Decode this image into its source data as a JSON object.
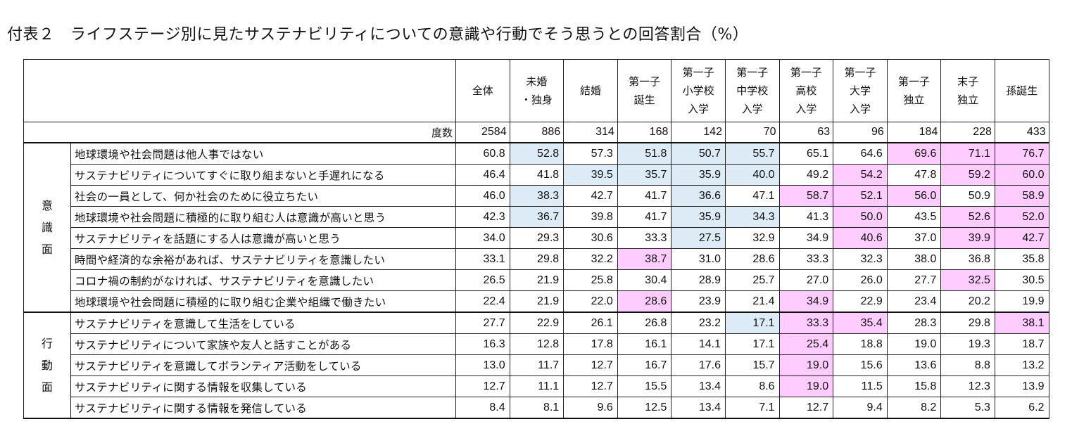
{
  "title": "付表２　ライフステージ別に見たサステナビリティについての意識や行動でそう思うとの回答割合（%）",
  "columns": [
    {
      "lines": [
        "全体"
      ]
    },
    {
      "lines": [
        "未婚",
        "・独身"
      ]
    },
    {
      "lines": [
        "結婚"
      ]
    },
    {
      "lines": [
        "第一子",
        "誕生"
      ]
    },
    {
      "lines": [
        "第一子",
        "小学校",
        "入学"
      ]
    },
    {
      "lines": [
        "第一子",
        "中学校",
        "入学"
      ]
    },
    {
      "lines": [
        "第一子",
        "高校",
        "入学"
      ]
    },
    {
      "lines": [
        "第一子",
        "大学",
        "入学"
      ]
    },
    {
      "lines": [
        "第一子",
        "独立"
      ]
    },
    {
      "lines": [
        "末子",
        "独立"
      ]
    },
    {
      "lines": [
        "孫誕生"
      ]
    }
  ],
  "n_row": {
    "label": "度数",
    "values": [
      "2584",
      "886",
      "314",
      "168",
      "142",
      "70",
      "63",
      "96",
      "184",
      "228",
      "433"
    ]
  },
  "sections": [
    {
      "label": "意識面",
      "rows": [
        {
          "item": "地球環境や社会問題は他人事ではない",
          "values": [
            "60.8",
            "52.8",
            "57.3",
            "51.8",
            "50.7",
            "55.7",
            "65.1",
            "64.6",
            "69.6",
            "71.1",
            "76.7"
          ],
          "hl": [
            "",
            "b",
            "",
            "b",
            "b",
            "b",
            "",
            "",
            "p",
            "p",
            "p"
          ]
        },
        {
          "item": "サステナビリティについてすぐに取り組まないと手遅れになる",
          "values": [
            "46.4",
            "41.8",
            "39.5",
            "35.7",
            "35.9",
            "40.0",
            "49.2",
            "54.2",
            "47.8",
            "59.2",
            "60.0"
          ],
          "hl": [
            "",
            "",
            "b",
            "b",
            "b",
            "b",
            "",
            "p",
            "",
            "p",
            "p"
          ]
        },
        {
          "item": "社会の一員として、何か社会のために役立ちたい",
          "values": [
            "46.0",
            "38.3",
            "42.7",
            "41.7",
            "36.6",
            "47.1",
            "58.7",
            "52.1",
            "56.0",
            "50.9",
            "58.9"
          ],
          "hl": [
            "",
            "b",
            "",
            "",
            "b",
            "",
            "p",
            "p",
            "p",
            "",
            "p"
          ]
        },
        {
          "item": "地球環境や社会問題に積極的に取り組む人は意識が高いと思う",
          "values": [
            "42.3",
            "36.7",
            "39.8",
            "41.7",
            "35.9",
            "34.3",
            "41.3",
            "50.0",
            "43.5",
            "52.6",
            "52.0"
          ],
          "hl": [
            "",
            "b",
            "",
            "",
            "b",
            "b",
            "",
            "p",
            "",
            "p",
            "p"
          ]
        },
        {
          "item": "サステナビリティを話題にする人は意識が高いと思う",
          "values": [
            "34.0",
            "29.3",
            "30.6",
            "33.3",
            "27.5",
            "32.9",
            "34.9",
            "40.6",
            "37.0",
            "39.9",
            "42.7"
          ],
          "hl": [
            "",
            "",
            "",
            "",
            "b",
            "",
            "",
            "p",
            "",
            "p",
            "p"
          ]
        },
        {
          "item": "時間や経済的な余裕があれば、サステナビリティを意識したい",
          "values": [
            "33.1",
            "29.8",
            "32.2",
            "38.7",
            "31.0",
            "28.6",
            "33.3",
            "32.3",
            "38.0",
            "36.8",
            "35.8"
          ],
          "hl": [
            "",
            "",
            "",
            "p",
            "",
            "",
            "",
            "",
            "",
            "",
            ""
          ]
        },
        {
          "item": "コロナ禍の制約がなければ、サステナビリティを意識したい",
          "values": [
            "26.5",
            "21.9",
            "25.8",
            "30.4",
            "28.9",
            "25.7",
            "27.0",
            "26.0",
            "27.7",
            "32.5",
            "30.5"
          ],
          "hl": [
            "",
            "",
            "",
            "",
            "",
            "",
            "",
            "",
            "",
            "p",
            ""
          ]
        },
        {
          "item": "地球環境や社会問題に積極的に取り組む企業や組織で働きたい",
          "values": [
            "22.4",
            "21.9",
            "22.0",
            "28.6",
            "23.9",
            "21.4",
            "34.9",
            "22.9",
            "23.4",
            "20.2",
            "19.9"
          ],
          "hl": [
            "",
            "",
            "",
            "p",
            "",
            "",
            "p",
            "",
            "",
            "",
            ""
          ]
        }
      ]
    },
    {
      "label": "行動面",
      "rows": [
        {
          "item": "サステナビリティを意識して生活をしている",
          "values": [
            "27.7",
            "22.9",
            "26.1",
            "26.8",
            "23.2",
            "17.1",
            "33.3",
            "35.4",
            "28.3",
            "29.8",
            "38.1"
          ],
          "hl": [
            "",
            "",
            "",
            "",
            "",
            "b",
            "p",
            "p",
            "",
            "",
            "p"
          ]
        },
        {
          "item": "サステナビリティについて家族や友人と話すことがある",
          "values": [
            "16.3",
            "12.8",
            "17.8",
            "16.1",
            "14.1",
            "17.1",
            "25.4",
            "18.8",
            "19.0",
            "19.3",
            "18.7"
          ],
          "hl": [
            "",
            "",
            "",
            "",
            "",
            "",
            "p",
            "",
            "",
            "",
            ""
          ]
        },
        {
          "item": "サステナビリティを意識してボランティア活動をしている",
          "values": [
            "13.0",
            "11.7",
            "12.7",
            "16.7",
            "17.6",
            "15.7",
            "19.0",
            "15.6",
            "13.6",
            "8.8",
            "13.2"
          ],
          "hl": [
            "",
            "",
            "",
            "",
            "",
            "",
            "p",
            "",
            "",
            "",
            ""
          ]
        },
        {
          "item": "サステナビリティに関する情報を収集している",
          "values": [
            "12.7",
            "11.1",
            "12.7",
            "15.5",
            "13.4",
            "8.6",
            "19.0",
            "11.5",
            "15.8",
            "12.3",
            "13.9"
          ],
          "hl": [
            "",
            "",
            "",
            "",
            "",
            "",
            "p",
            "",
            "",
            "",
            ""
          ]
        },
        {
          "item": "サステナビリティに関する情報を発信している",
          "values": [
            "8.4",
            "8.1",
            "9.6",
            "12.5",
            "13.4",
            "7.1",
            "12.7",
            "9.4",
            "8.2",
            "5.3",
            "6.2"
          ],
          "hl": [
            "",
            "",
            "",
            "",
            "",
            "",
            "",
            "",
            "",
            "",
            ""
          ]
        }
      ]
    }
  ]
}
